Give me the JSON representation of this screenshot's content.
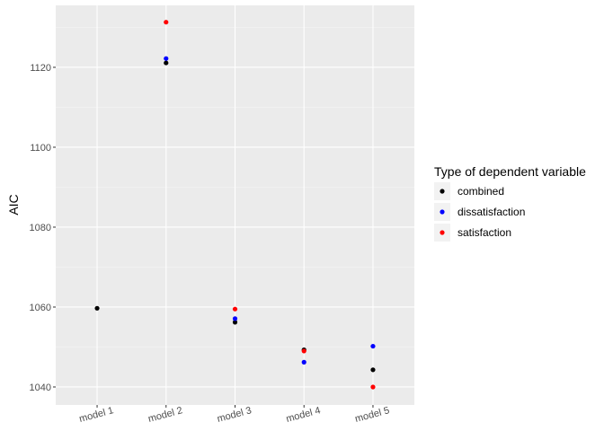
{
  "chart_data": {
    "type": "scatter",
    "title": "",
    "xlabel": "",
    "ylabel": "AIC",
    "categories": [
      "model 1",
      "model 2",
      "model 3",
      "model 4",
      "model 5"
    ],
    "ylim": [
      1035.5,
      1135.5
    ],
    "yticks": [
      1040,
      1060,
      1080,
      1100,
      1120
    ],
    "grid": true,
    "legend_position": "right",
    "legend_title": "Type of dependent variable",
    "series": [
      {
        "name": "combined",
        "color": "#000000",
        "values": [
          1059.7,
          1121.1,
          1056.2,
          1049.3,
          1044.3
        ]
      },
      {
        "name": "dissatisfaction",
        "color": "#0000ff",
        "values": [
          null,
          1122.2,
          1057.1,
          1046.2,
          1050.2
        ]
      },
      {
        "name": "satisfaction",
        "color": "#ff0000",
        "values": [
          null,
          1131.3,
          1059.5,
          1049.0,
          1040.0
        ]
      }
    ]
  }
}
